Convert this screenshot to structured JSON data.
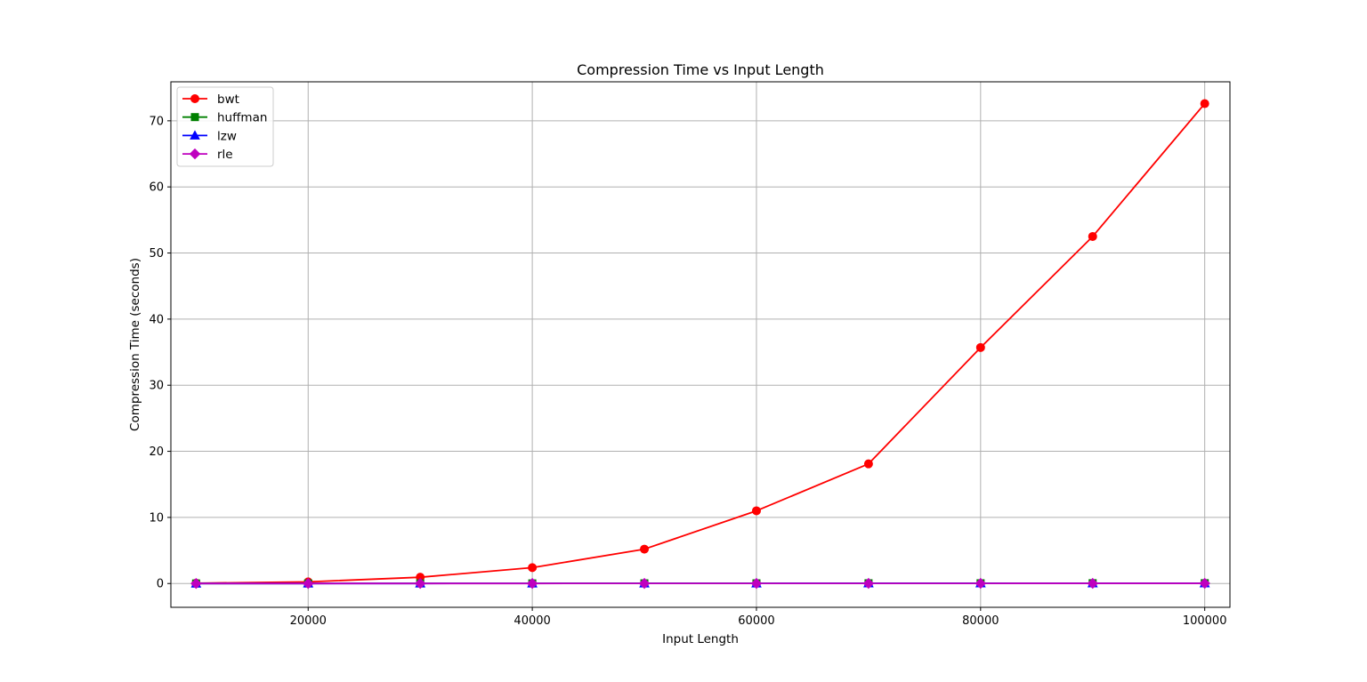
{
  "chart_data": {
    "type": "line",
    "title": "Compression Time vs Input Length",
    "xlabel": "Input Length",
    "ylabel": "Compression Time (seconds)",
    "xlim": [
      7750,
      102250
    ],
    "ylim": [
      -3.6,
      75.9
    ],
    "xticks": [
      20000,
      40000,
      60000,
      80000,
      100000
    ],
    "yticks": [
      0,
      10,
      20,
      30,
      40,
      50,
      60,
      70
    ],
    "grid": true,
    "legend_position": "upper-left",
    "x": [
      10000,
      20000,
      30000,
      40000,
      50000,
      60000,
      70000,
      80000,
      90000,
      100000
    ],
    "series": [
      {
        "name": "bwt",
        "color": "#ff0000",
        "marker": "circle",
        "values": [
          0.05,
          0.25,
          0.95,
          2.4,
          5.2,
          11.0,
          18.1,
          35.7,
          52.5,
          72.6
        ]
      },
      {
        "name": "huffman",
        "color": "#008000",
        "marker": "square",
        "values": [
          0.01,
          0.01,
          0.02,
          0.02,
          0.03,
          0.03,
          0.04,
          0.04,
          0.05,
          0.05
        ]
      },
      {
        "name": "lzw",
        "color": "#0000ff",
        "marker": "triangle",
        "values": [
          0.005,
          0.01,
          0.01,
          0.015,
          0.02,
          0.02,
          0.025,
          0.03,
          0.03,
          0.035
        ]
      },
      {
        "name": "rle",
        "color": "#bf00bf",
        "marker": "diamond",
        "values": [
          0.003,
          0.005,
          0.008,
          0.01,
          0.012,
          0.015,
          0.018,
          0.02,
          0.022,
          0.025
        ]
      }
    ]
  }
}
